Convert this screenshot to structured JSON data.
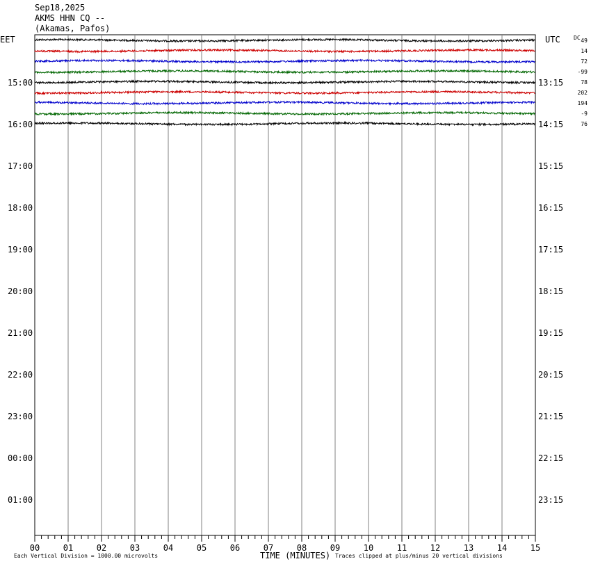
{
  "header": {
    "date": "Sep18,2025",
    "station": "AKMS HHN CQ --",
    "location": "(Akamas, Pafos)"
  },
  "labels": {
    "left_zone": "EET",
    "right_zone": "UTC",
    "dc": "DC"
  },
  "chart_data": {
    "type": "line",
    "title": "AKMS HHN CQ --",
    "xlabel": "TIME (MINUTES)",
    "x_ticks": [
      "00",
      "01",
      "02",
      "03",
      "04",
      "05",
      "06",
      "07",
      "08",
      "09",
      "10",
      "11",
      "12",
      "13",
      "14",
      "15"
    ],
    "xlim": [
      0,
      15
    ],
    "left_time_labels": [
      "15:00",
      "16:00",
      "17:00",
      "18:00",
      "19:00",
      "20:00",
      "21:00",
      "22:00",
      "23:00",
      "00:00",
      "01:00"
    ],
    "right_time_labels": [
      "13:15",
      "14:15",
      "15:15",
      "16:15",
      "17:15",
      "18:15",
      "19:15",
      "20:15",
      "21:15",
      "22:15",
      "23:15"
    ],
    "trace_colors": [
      "#000000",
      "#cc0000",
      "#0000cc",
      "#006600"
    ],
    "traces_drawn": 9,
    "dc_offsets": [
      "49",
      "14",
      "72",
      "-99",
      "78",
      "202",
      "194",
      "-9",
      "76"
    ],
    "grid": true
  },
  "footer": {
    "scale_note": "Each Vertical Division = 1000.00 microvolts",
    "clip_note": "Traces clipped at plus/minus 20 vertical divisions"
  }
}
